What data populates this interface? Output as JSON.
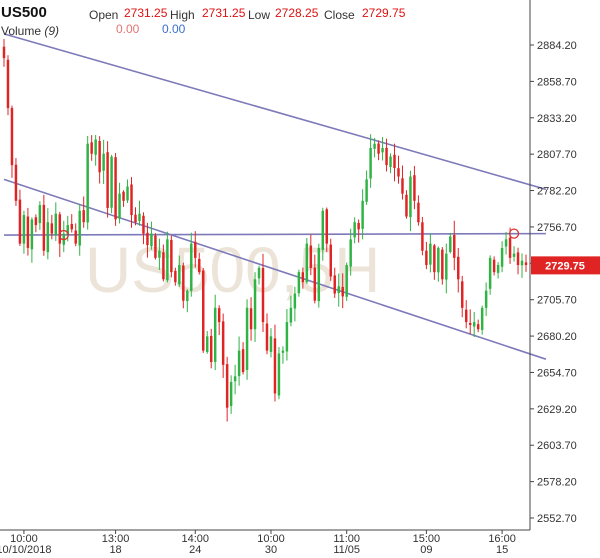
{
  "header": {
    "symbol": "US500",
    "open_label": "Open",
    "open_value": "2731.25",
    "high_label": "High",
    "high_value": "2731.25",
    "low_label": "Low",
    "low_value": "2728.25",
    "close_label": "Close",
    "close_value": "2729.75",
    "volume_label": "Volume",
    "volume_period": "(9)",
    "volume_value_1": "0.00",
    "volume_value_2": "0.00"
  },
  "watermark": "US500,5H",
  "colors": {
    "up": "#2fb344",
    "down": "#e02424",
    "trendline": "#7d7aba",
    "last_price": "#e02424"
  },
  "chart_data": {
    "type": "candlestick",
    "ylim": [
      2540,
      2900
    ],
    "y_ticks": [
      2884.2,
      2858.7,
      2833.2,
      2807.7,
      2782.2,
      2756.7,
      2731.2,
      2705.7,
      2680.2,
      2654.7,
      2629.2,
      2603.7,
      2578.2,
      2552.7
    ],
    "y_tick_labels": [
      "2884.20",
      "2858.70",
      "2833.20",
      "2807.70",
      "2782.20",
      "2756.70",
      "",
      "2705.70",
      "2680.20",
      "2654.70",
      "2629.20",
      "2603.70",
      "2578.20",
      "2552.70"
    ],
    "x_labels": [
      {
        "index": 5,
        "top": "10:00",
        "bottom": "10/10/2018"
      },
      {
        "index": 28,
        "top": "13:00",
        "bottom": "18"
      },
      {
        "index": 48,
        "top": "14:00",
        "bottom": "24"
      },
      {
        "index": 67,
        "top": "10:00",
        "bottom": "30"
      },
      {
        "index": 86,
        "top": "11:00",
        "bottom": "11/05"
      },
      {
        "index": 106,
        "top": "15:00",
        "bottom": "09"
      },
      {
        "index": 125,
        "top": "16:00",
        "bottom": "15"
      }
    ],
    "last_price": 2729.75,
    "last_price_label": "2729.75",
    "trendlines": [
      {
        "from": [
          0,
          2892
        ],
        "to": [
          136,
          2783
        ]
      },
      {
        "from": [
          0,
          2790
        ],
        "to": [
          136,
          2664
        ]
      },
      {
        "from": [
          0,
          2751
        ],
        "to": [
          136,
          2752
        ]
      }
    ],
    "markers": [
      [
        15,
        2751
      ],
      [
        128,
        2752
      ]
    ],
    "closes": [
      2875,
      2840,
      2800,
      2775,
      2745,
      2765,
      2742,
      2762,
      2758,
      2772,
      2740,
      2760,
      2752,
      2766,
      2745,
      2752,
      2758,
      2755,
      2745,
      2768,
      2760,
      2815,
      2808,
      2818,
      2795,
      2808,
      2770,
      2806,
      2762,
      2780,
      2775,
      2785,
      2765,
      2760,
      2766,
      2752,
      2744,
      2752,
      2735,
      2740,
      2720,
      2748,
      2725,
      2718,
      2730,
      2705,
      2712,
      2745,
      2735,
      2725,
      2670,
      2680,
      2662,
      2700,
      2690,
      2660,
      2630,
      2648,
      2652,
      2670,
      2655,
      2700,
      2685,
      2720,
      2728,
      2690,
      2670,
      2680,
      2640,
      2668,
      2670,
      2690,
      2700,
      2710,
      2725,
      2718,
      2745,
      2728,
      2705,
      2742,
      2768,
      2745,
      2722,
      2710,
      2715,
      2708,
      2730,
      2748,
      2760,
      2755,
      2775,
      2790,
      2812,
      2815,
      2808,
      2812,
      2800,
      2806,
      2798,
      2792,
      2780,
      2764,
      2792,
      2775,
      2760,
      2740,
      2730,
      2745,
      2725,
      2742,
      2720,
      2738,
      2750,
      2735,
      2720,
      2700,
      2690,
      2688,
      2690,
      2685,
      2700,
      2712,
      2735,
      2725,
      2730,
      2742,
      2748,
      2735,
      2738,
      2730,
      2733,
      2730
    ]
  }
}
